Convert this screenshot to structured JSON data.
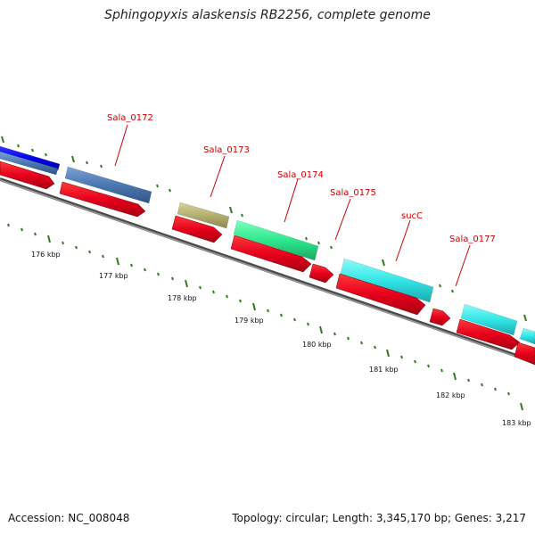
{
  "title": "Sphingopyxis alaskensis RB2256, complete genome",
  "footer": {
    "accession": "Accession: NC_008048",
    "summary": "Topology: circular; Length: 3,345,170 bp; Genes: 3,217"
  },
  "colors": {
    "background": "#ffffff",
    "backbone": "#7a7a7a",
    "gene_label": "#cc0000",
    "tick": "#2e7d1c",
    "cds": "#e8001c",
    "blue": "#0000ee",
    "steelblue": "#4a78b0",
    "khaki": "#b5b070",
    "green": "#2ee88f",
    "cyan": "#33e6e6"
  },
  "scale_labels": [
    "176 kbp",
    "177 kbp",
    "178 kbp",
    "179 kbp",
    "180 kbp",
    "181 kbp",
    "182 kbp",
    "183 kbp"
  ],
  "genes": [
    {
      "label": "Sala_0172",
      "color": "steelblue"
    },
    {
      "label": "Sala_0173",
      "color": "khaki"
    },
    {
      "label": "Sala_0174",
      "color": "green"
    },
    {
      "label": "Sala_0175",
      "color": "cyan"
    },
    {
      "label": "sucC",
      "color": "cyan"
    },
    {
      "label": "Sala_0177",
      "color": "cyan"
    }
  ]
}
